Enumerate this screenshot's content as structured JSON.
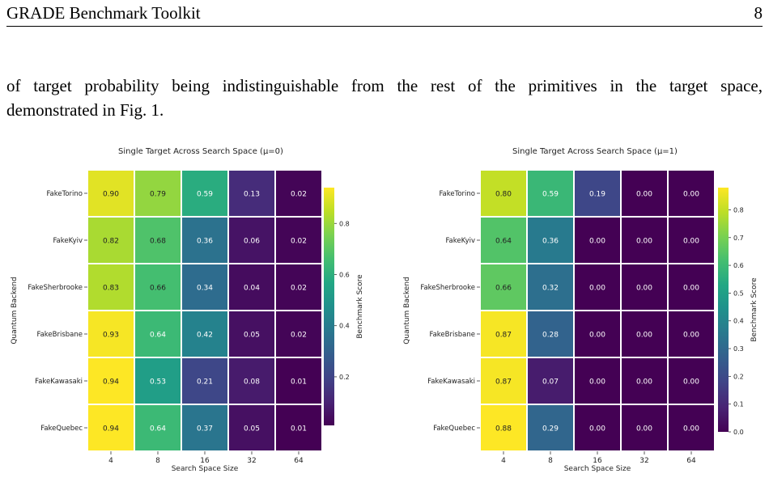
{
  "header": {
    "running_title": "GRADE Benchmark Toolkit",
    "page_number": "8"
  },
  "paragraph": {
    "line1": "of target probability being indistinguishable from the rest of the primitives in the target space,",
    "line2": "demonstrated in Fig. 1."
  },
  "chart_data": [
    {
      "type": "heatmap",
      "title": "Single Target Across Search Space (μ=0)",
      "xlabel": "Search Space Size",
      "ylabel": "Quantum Backend",
      "colorbar_label": "Benchmark Score",
      "categories_x": [
        "4",
        "8",
        "16",
        "32",
        "64"
      ],
      "categories_y": [
        "FakeTorino",
        "FakeKyiv",
        "FakeSherbrooke",
        "FakeBrisbane",
        "FakeKawasaki",
        "FakeQuebec"
      ],
      "values": [
        [
          0.9,
          0.79,
          0.59,
          0.13,
          0.02
        ],
        [
          0.82,
          0.68,
          0.36,
          0.06,
          0.02
        ],
        [
          0.83,
          0.66,
          0.34,
          0.04,
          0.02
        ],
        [
          0.93,
          0.64,
          0.42,
          0.05,
          0.02
        ],
        [
          0.94,
          0.53,
          0.21,
          0.08,
          0.01
        ],
        [
          0.94,
          0.64,
          0.37,
          0.05,
          0.01
        ]
      ],
      "labels": [
        [
          "0.90",
          "0.79",
          "0.59",
          "0.13",
          "0.02"
        ],
        [
          "0.82",
          "0.68",
          "0.36",
          "0.06",
          "0.02"
        ],
        [
          "0.83",
          "0.66",
          "0.34",
          "0.04",
          "0.02"
        ],
        [
          "0.93",
          "0.64",
          "0.42",
          "0.05",
          "0.02"
        ],
        [
          "0.94",
          "0.53",
          "0.21",
          "0.08",
          "0.01"
        ],
        [
          "0.94",
          "0.64",
          "0.37",
          "0.05",
          "0.01"
        ]
      ],
      "vmin": 0.01,
      "vmax": 0.94,
      "colorbar_ticks": [
        0.2,
        0.4,
        0.6,
        0.8
      ],
      "colorbar_tick_labels": [
        "0.2",
        "0.4",
        "0.6",
        "0.8"
      ],
      "colormap": "viridis"
    },
    {
      "type": "heatmap",
      "title": "Single Target Across Search Space (μ=1)",
      "xlabel": "Search Space Size",
      "ylabel": "Quantum Backend",
      "colorbar_label": "Benchmark Score",
      "categories_x": [
        "4",
        "8",
        "16",
        "32",
        "64"
      ],
      "categories_y": [
        "FakeTorino",
        "FakeKyiv",
        "FakeSherbrooke",
        "FakeBrisbane",
        "FakeKawasaki",
        "FakeQuebec"
      ],
      "values": [
        [
          0.8,
          0.59,
          0.19,
          0.0,
          0.0
        ],
        [
          0.64,
          0.36,
          0.0,
          0.0,
          0.0
        ],
        [
          0.66,
          0.32,
          0.0,
          0.0,
          0.0
        ],
        [
          0.87,
          0.28,
          0.0,
          0.0,
          0.0
        ],
        [
          0.87,
          0.07,
          0.0,
          0.0,
          0.0
        ],
        [
          0.88,
          0.29,
          0.0,
          0.0,
          0.0
        ]
      ],
      "labels": [
        [
          "0.80",
          "0.59",
          "0.19",
          "0.00",
          "0.00"
        ],
        [
          "0.64",
          "0.36",
          "0.00",
          "0.00",
          "0.00"
        ],
        [
          "0.66",
          "0.32",
          "0.00",
          "0.00",
          "0.00"
        ],
        [
          "0.87",
          "0.28",
          "0.00",
          "0.00",
          "0.00"
        ],
        [
          "0.87",
          "0.07",
          "0.00",
          "0.00",
          "0.00"
        ],
        [
          "0.88",
          "0.29",
          "0.00",
          "0.00",
          "0.00"
        ]
      ],
      "vmin": 0.0,
      "vmax": 0.88,
      "colorbar_ticks": [
        0.0,
        0.1,
        0.2,
        0.3,
        0.4,
        0.5,
        0.6,
        0.7,
        0.8
      ],
      "colorbar_tick_labels": [
        "0.0",
        "0.1",
        "0.2",
        "0.3",
        "0.4",
        "0.5",
        "0.6",
        "0.7",
        "0.8"
      ],
      "colormap": "viridis"
    }
  ]
}
